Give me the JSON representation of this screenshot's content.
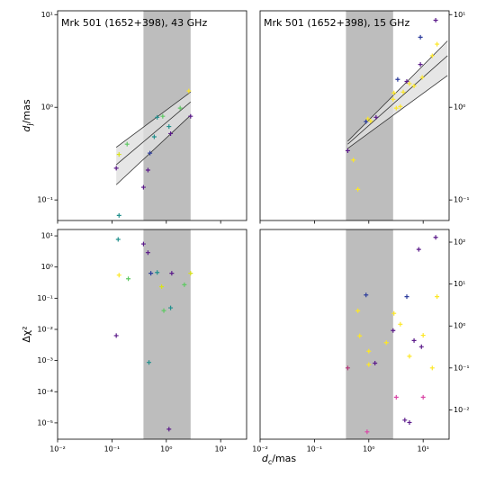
{
  "chart_data": [
    {
      "type": "scatter",
      "title": "Mrk 501 (1652+398), 43 GHz",
      "xscale": "log",
      "yscale": "log",
      "xlim": [
        0.01,
        30
      ],
      "ylim": [
        0.06,
        11
      ],
      "ytick_side": "left",
      "show_xtick_labels": false,
      "xticks": [
        {
          "value": 0.01,
          "label": "10⁻²"
        },
        {
          "value": 0.1,
          "label": "10⁻¹"
        },
        {
          "value": 1,
          "label": "10⁰"
        },
        {
          "value": 10,
          "label": "10¹"
        }
      ],
      "yticks": [
        {
          "value": 0.1,
          "label": "10⁻¹"
        },
        {
          "value": 1,
          "label": "10⁰"
        },
        {
          "value": 10,
          "label": "10¹"
        }
      ],
      "ylabel": {
        "symbol": "d",
        "subscript": "j",
        "unit": "/mas"
      },
      "band": [
        0.38,
        2.8
      ],
      "band_color": "#bdbdbd",
      "fit": {
        "x": [
          0.12,
          2.8
        ],
        "center": [
          0.24,
          1.14
        ],
        "lower": [
          0.146,
          0.82
        ],
        "upper": [
          0.37,
          1.46
        ]
      },
      "series": [
        {
          "x": [
            0.12,
            0.135,
            0.135,
            0.19,
            0.38,
            0.46,
            0.5,
            0.6,
            0.68,
            0.86,
            1.12,
            1.2,
            1.8,
            2.6,
            2.8
          ],
          "values": [
            0.22,
            0.068,
            0.31,
            0.4,
            0.137,
            0.21,
            0.32,
            0.48,
            0.78,
            0.8,
            0.62,
            0.52,
            0.98,
            1.5,
            0.8
          ],
          "colors": [
            "#5b1a8a",
            "#21908d",
            "#d8e219",
            "#5ec962",
            "#5b1a8a",
            "#5b1a8a",
            "#2c3c9c",
            "#21908d",
            "#21908d",
            "#5ec962",
            "#21908d",
            "#5b1a8a",
            "#5ec962",
            "#fde725",
            "#5b1a8a"
          ]
        }
      ]
    },
    {
      "type": "scatter",
      "title": "Mrk 501 (1652+398), 15 GHz",
      "xscale": "log",
      "yscale": "log",
      "xlim": [
        0.01,
        30
      ],
      "ylim": [
        0.06,
        11
      ],
      "ytick_side": "right",
      "show_xtick_labels": false,
      "xticks": [
        {
          "value": 0.01,
          "label": "10⁻²"
        },
        {
          "value": 0.1,
          "label": "10⁻¹"
        },
        {
          "value": 1,
          "label": "10⁰"
        },
        {
          "value": 10,
          "label": "10¹"
        }
      ],
      "yticks": [
        {
          "value": 0.1,
          "label": "10⁻¹"
        },
        {
          "value": 1,
          "label": "10⁰"
        },
        {
          "value": 10,
          "label": "10¹"
        }
      ],
      "band": [
        0.38,
        2.8
      ],
      "band_color": "#bdbdbd",
      "fit": {
        "x": [
          0.41,
          28
        ],
        "center": [
          0.4,
          3.6
        ],
        "lower": [
          0.36,
          2.2
        ],
        "upper": [
          0.43,
          5.2
        ]
      },
      "series": [
        {
          "x": [
            0.41,
            0.52,
            0.63,
            0.89,
            0.96,
            1.08,
            1.36,
            2.8,
            2.9,
            3.4,
            5,
            5.6,
            8.9,
            9.6,
            8.9,
            17,
            18,
            14.7,
            6.8,
            4.3,
            3.2,
            3.8
          ],
          "values": [
            0.34,
            0.27,
            0.13,
            0.7,
            0.75,
            0.71,
            0.78,
            1.22,
            1.43,
            2.0,
            1.9,
            1.8,
            2.9,
            2.1,
            5.7,
            8.7,
            4.8,
            3.6,
            1.7,
            1.46,
            0.98,
            1.02
          ],
          "colors": [
            "#5b1a8a",
            "#fde725",
            "#fde725",
            "#2c3c9c",
            "#fde725",
            "#fde725",
            "#5b1a8a",
            "#fde725",
            "#fde725",
            "#2c3c9c",
            "#5b1a8a",
            "#fde725",
            "#5b1a8a",
            "#fde725",
            "#2c3c9c",
            "#5b1a8a",
            "#fde725",
            "#fde725",
            "#fde725",
            "#fde725",
            "#fde725",
            "#fde725"
          ]
        }
      ]
    },
    {
      "type": "scatter",
      "xscale": "log",
      "yscale": "log",
      "xlim": [
        0.01,
        30
      ],
      "ylim": [
        3e-06,
        16
      ],
      "ytick_side": "left",
      "show_xtick_labels": true,
      "xticks": [
        {
          "value": 0.01,
          "label": "10⁻²"
        },
        {
          "value": 0.1,
          "label": "10⁻¹"
        },
        {
          "value": 1,
          "label": "10⁰"
        },
        {
          "value": 10,
          "label": "10¹"
        }
      ],
      "yticks": [
        {
          "value": 1e-05,
          "label": "10⁻⁵"
        },
        {
          "value": 0.0001,
          "label": "10⁻⁴"
        },
        {
          "value": 0.001,
          "label": "10⁻³"
        },
        {
          "value": 0.01,
          "label": "10⁻²"
        },
        {
          "value": 0.1,
          "label": "10⁻¹"
        },
        {
          "value": 1,
          "label": "10⁰"
        },
        {
          "value": 10,
          "label": "10¹"
        }
      ],
      "ylabel": "Δχ²",
      "band": [
        0.38,
        2.8
      ],
      "band_color": "#bdbdbd",
      "series": [
        {
          "x": [
            0.13,
            0.135,
            0.2,
            0.12,
            0.38,
            0.46,
            0.52,
            0.68,
            0.82,
            0.9,
            1.2,
            1.26,
            2.15,
            2.8,
            0.48,
            1.12
          ],
          "values": [
            7.7,
            0.55,
            0.42,
            0.0063,
            5.5,
            2.9,
            0.63,
            0.67,
            0.235,
            0.04,
            0.049,
            0.63,
            0.27,
            0.63,
            0.00087,
            6.3e-06
          ],
          "colors": [
            "#21908d",
            "#fde725",
            "#5ec962",
            "#5b1a8a",
            "#5b1a8a",
            "#5b1a8a",
            "#2c3c9c",
            "#21908d",
            "#d8e219",
            "#5ec962",
            "#21908d",
            "#5b1a8a",
            "#5ec962",
            "#d8e219",
            "#21908d",
            "#5b1a8a"
          ]
        }
      ]
    },
    {
      "type": "scatter",
      "xscale": "log",
      "yscale": "log",
      "xlim": [
        0.01,
        30
      ],
      "ylim": [
        0.002,
        200
      ],
      "ytick_side": "right",
      "show_xtick_labels": true,
      "xticks": [
        {
          "value": 0.01,
          "label": "10⁻²"
        },
        {
          "value": 0.1,
          "label": "10⁻¹"
        },
        {
          "value": 1,
          "label": "10⁰"
        },
        {
          "value": 10,
          "label": "10¹"
        }
      ],
      "yticks": [
        {
          "value": 0.01,
          "label": "10⁻²"
        },
        {
          "value": 0.1,
          "label": "10⁻¹"
        },
        {
          "value": 1,
          "label": "10⁰"
        },
        {
          "value": 10,
          "label": "10¹"
        },
        {
          "value": 100,
          "label": "10²"
        }
      ],
      "band": [
        0.38,
        2.8
      ],
      "band_color": "#bdbdbd",
      "series": [
        {
          "x": [
            17,
            8.3,
            0.89,
            0.68,
            0.41,
            1.0,
            1.0,
            1.3,
            2.8,
            2.9,
            5,
            5.6,
            6.8,
            9.3,
            10,
            14.7,
            18,
            3.2,
            4.6,
            5.6,
            0.93,
            10,
            0.63,
            2.1,
            3.8
          ],
          "values": [
            130,
            67,
            5.5,
            0.58,
            0.1,
            0.25,
            0.12,
            0.13,
            0.78,
            2.0,
            5,
            0.19,
            0.45,
            0.32,
            0.6,
            0.1,
            5,
            0.02,
            0.0057,
            0.005,
            0.003,
            0.02,
            2.3,
            0.4,
            1.1
          ],
          "colors": [
            "#5b1a8a",
            "#5b1a8a",
            "#2c3c9c",
            "#fde725",
            "#b5367a",
            "#fde725",
            "#fde725",
            "#5b1a8a",
            "#5b1a8a",
            "#fde725",
            "#2c3c9c",
            "#fde725",
            "#5b1a8a",
            "#5b1a8a",
            "#fde725",
            "#fde725",
            "#fde725",
            "#d946a6",
            "#5b1a8a",
            "#5b1a8a",
            "#d946a6",
            "#d946a6",
            "#fde725",
            "#fde725",
            "#fde725"
          ]
        }
      ]
    }
  ],
  "xlabel": {
    "symbol": "d",
    "subscript": "c",
    "unit": "/mas"
  }
}
